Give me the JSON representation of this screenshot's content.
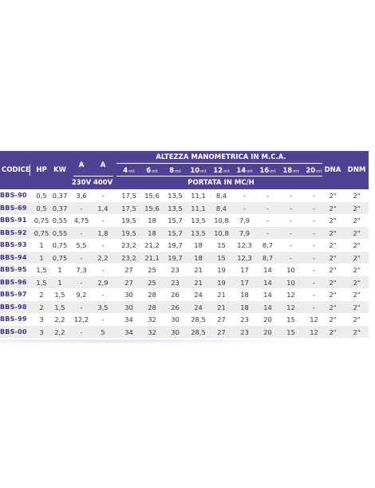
{
  "header": {
    "codice": "CODICE",
    "hp": "HP",
    "kw": "KW",
    "a1": "A",
    "a2": "A",
    "v230": "230V",
    "v400": "400V",
    "altezza": "ALTEZZA MANOMETRICA IN M.C.A.",
    "portata": "PORTATA IN MC/H",
    "dna": "DNA",
    "dnm": "DNM",
    "heights": [
      "4",
      "6",
      "8",
      "10",
      "12",
      "14",
      "16",
      "18",
      "20"
    ],
    "height_unit": "mt"
  },
  "rows": [
    {
      "code": "BBS-90",
      "hp": "0,5",
      "kw": "0,37",
      "a230": "3,6",
      "a400": "-",
      "flows": [
        "17,5",
        "15,6",
        "13,5",
        "11,1",
        "8,4",
        "-",
        "-",
        "-",
        "-"
      ],
      "dna": "2\"",
      "dnm": "2\""
    },
    {
      "code": "BBS-69",
      "hp": "0,5",
      "kw": "0,37",
      "a230": "-",
      "a400": "1,4",
      "flows": [
        "17,5",
        "15,6",
        "13,5",
        "11,1",
        "8,4",
        "-",
        "-",
        "-",
        "-"
      ],
      "dna": "2\"",
      "dnm": "2\""
    },
    {
      "code": "BBS-91",
      "hp": "0,75",
      "kw": "0,55",
      "a230": "4,75",
      "a400": "-",
      "flows": [
        "19,5",
        "18",
        "15,7",
        "13,5",
        "10,8",
        "7,9",
        "-",
        "-",
        "-"
      ],
      "dna": "2\"",
      "dnm": "2\""
    },
    {
      "code": "BBS-92",
      "hp": "0,75",
      "kw": "0,55",
      "a230": "-",
      "a400": "1,8",
      "flows": [
        "19,5",
        "18",
        "15,7",
        "13,5",
        "10,8",
        "7,9",
        "-",
        "-",
        "-"
      ],
      "dna": "2\"",
      "dnm": "2\""
    },
    {
      "code": "BBS-93",
      "hp": "1",
      "kw": "0,75",
      "a230": "5,5",
      "a400": "-",
      "flows": [
        "23,2",
        "21,2",
        "19,7",
        "18",
        "15",
        "12,3",
        "8,7",
        "-",
        "-"
      ],
      "dna": "2\"",
      "dnm": "2\""
    },
    {
      "code": "BBS-94",
      "hp": "1",
      "kw": "0,75",
      "a230": "-",
      "a400": "2,2",
      "flows": [
        "23,2",
        "21,1",
        "19,7",
        "18",
        "15",
        "12,3",
        "8,7",
        "-",
        "-"
      ],
      "dna": "2\"",
      "dnm": "2\""
    },
    {
      "code": "BBS-95",
      "hp": "1,5",
      "kw": "1",
      "a230": "7,3",
      "a400": "-",
      "flows": [
        "27",
        "25",
        "23",
        "21",
        "19",
        "17",
        "14",
        "10",
        "-"
      ],
      "dna": "2\"",
      "dnm": "2\""
    },
    {
      "code": "BBS-96",
      "hp": "1,5",
      "kw": "1",
      "a230": "-",
      "a400": "2,9",
      "flows": [
        "27",
        "25",
        "23",
        "21",
        "19",
        "17",
        "14",
        "10",
        "-"
      ],
      "dna": "2\"",
      "dnm": "2\""
    },
    {
      "code": "BBS-97",
      "hp": "2",
      "kw": "1,5",
      "a230": "9,2",
      "a400": "-",
      "flows": [
        "30",
        "28",
        "26",
        "24",
        "21",
        "18",
        "14",
        "12",
        "-"
      ],
      "dna": "2\"",
      "dnm": "2\""
    },
    {
      "code": "BBS-98",
      "hp": "2",
      "kw": "1,5",
      "a230": "-",
      "a400": "3,5",
      "flows": [
        "30",
        "28",
        "26",
        "24",
        "21",
        "18",
        "14",
        "12",
        "-"
      ],
      "dna": "2\"",
      "dnm": "2\""
    },
    {
      "code": "BBS-99",
      "hp": "3",
      "kw": "2,2",
      "a230": "12,2",
      "a400": "-",
      "flows": [
        "34",
        "32",
        "30",
        "28,5",
        "27",
        "23",
        "20",
        "15",
        "12"
      ],
      "dna": "2\"",
      "dnm": "2\""
    },
    {
      "code": "BBS-00",
      "hp": "3",
      "kw": "2,2",
      "a230": "-",
      "a400": "5",
      "flows": [
        "34",
        "32",
        "30",
        "28,5",
        "27",
        "23",
        "20",
        "15",
        "12"
      ],
      "dna": "2\"",
      "dnm": "2\""
    }
  ],
  "colors": {
    "header_bg": "#4e4392",
    "code_text": "#3b3185",
    "alt_row": "#ededed"
  }
}
